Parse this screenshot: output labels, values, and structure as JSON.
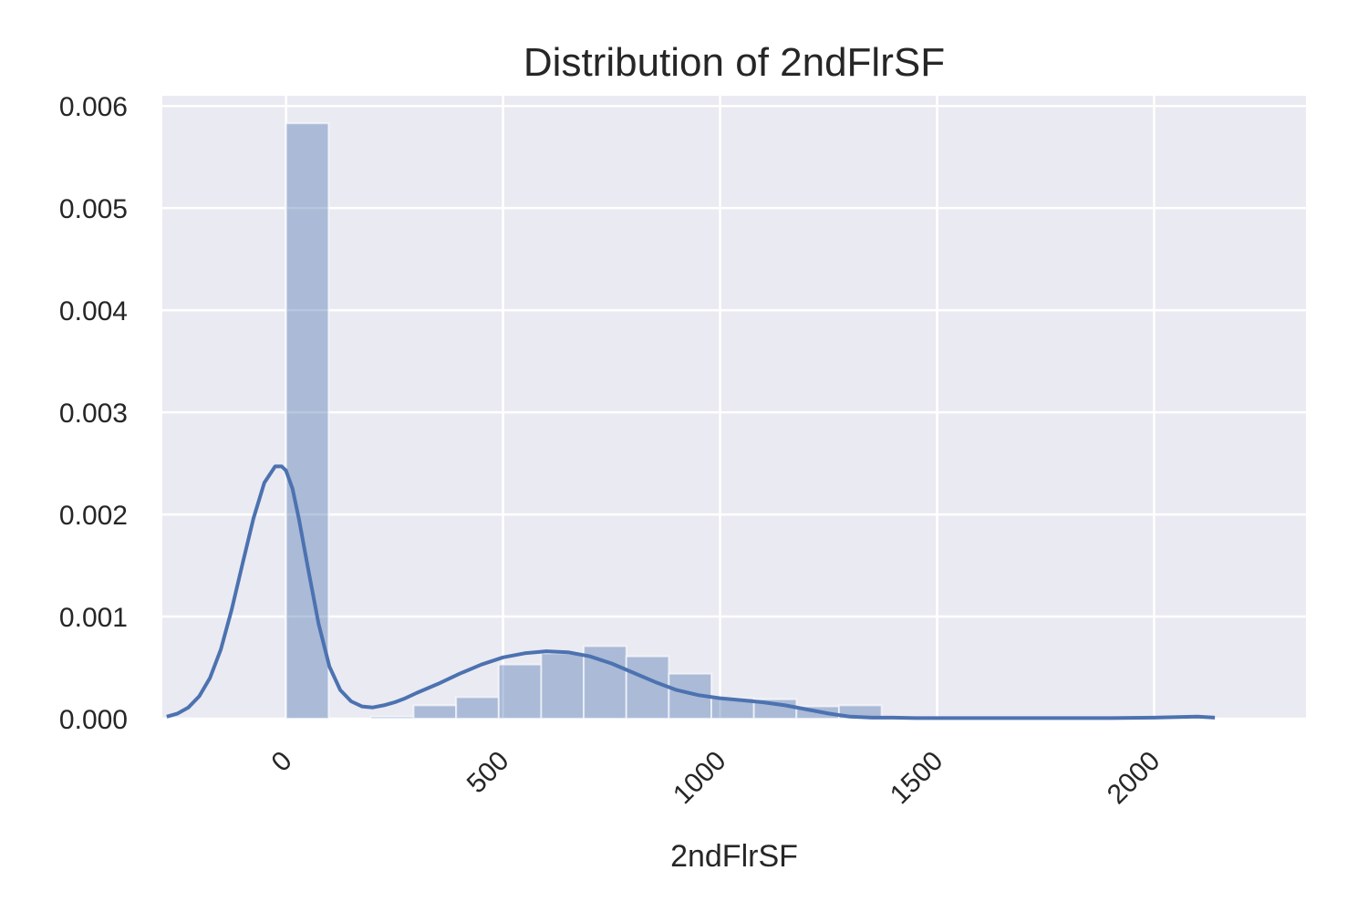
{
  "chart_data": {
    "type": "bar",
    "title": "Distribution of 2ndFlrSF",
    "xlabel": "2ndFlrSF",
    "ylabel": "",
    "xlim": [
      -285,
      2350
    ],
    "ylim": [
      0,
      0.0061
    ],
    "grid": true,
    "background_color": "#eaeaf2",
    "bar_color": "#4c72b0",
    "line_color": "#4c72b0",
    "x_ticks": [
      0,
      500,
      1000,
      1500,
      2000
    ],
    "x_tick_labels": [
      "0",
      "500",
      "1000",
      "1500",
      "2000"
    ],
    "y_ticks": [
      0,
      0.001,
      0.002,
      0.003,
      0.004,
      0.005,
      0.006
    ],
    "y_tick_labels": [
      "0.000",
      "0.001",
      "0.002",
      "0.003",
      "0.004",
      "0.005",
      "0.006"
    ],
    "histogram": {
      "bins": [
        [
          0,
          98,
          0.00583
        ],
        [
          196,
          294,
          2e-05
        ],
        [
          294,
          392,
          0.00013
        ],
        [
          392,
          490,
          0.00021
        ],
        [
          490,
          588,
          0.00053
        ],
        [
          588,
          686,
          0.00064
        ],
        [
          686,
          784,
          0.00071
        ],
        [
          784,
          882,
          0.00061
        ],
        [
          882,
          980,
          0.00044
        ],
        [
          980,
          1078,
          0.0002
        ],
        [
          1078,
          1176,
          0.00019
        ],
        [
          1176,
          1274,
          0.00012
        ],
        [
          1274,
          1372,
          0.00013
        ]
      ]
    },
    "kde": {
      "x": [
        -275,
        -250,
        -225,
        -200,
        -175,
        -150,
        -125,
        -100,
        -75,
        -50,
        -25,
        -10,
        0,
        15,
        30,
        50,
        75,
        100,
        125,
        150,
        175,
        200,
        225,
        250,
        275,
        300,
        350,
        400,
        450,
        500,
        550,
        600,
        650,
        700,
        750,
        800,
        850,
        900,
        950,
        1000,
        1050,
        1100,
        1150,
        1200,
        1250,
        1300,
        1350,
        1400,
        1450,
        1500,
        1600,
        1700,
        1800,
        1900,
        2000,
        2100,
        2140
      ],
      "y": [
        2e-05,
        5e-05,
        0.00011,
        0.00022,
        0.0004,
        0.00068,
        0.00107,
        0.00152,
        0.00196,
        0.00231,
        0.00247,
        0.00247,
        0.00243,
        0.00225,
        0.00195,
        0.00149,
        0.00093,
        0.00051,
        0.00028,
        0.00017,
        0.00012,
        0.00011,
        0.00013,
        0.00016,
        0.0002,
        0.00025,
        0.00034,
        0.00044,
        0.00053,
        0.0006,
        0.00064,
        0.00066,
        0.00065,
        0.00061,
        0.00054,
        0.00045,
        0.00036,
        0.00028,
        0.00023,
        0.0002,
        0.00018,
        0.00016,
        0.00013,
        9e-05,
        5e-05,
        2e-05,
        1e-05,
        1e-05,
        5e-06,
        5e-06,
        5e-06,
        5e-06,
        5e-06,
        5e-06,
        1e-05,
        2e-05,
        1e-05
      ]
    }
  }
}
